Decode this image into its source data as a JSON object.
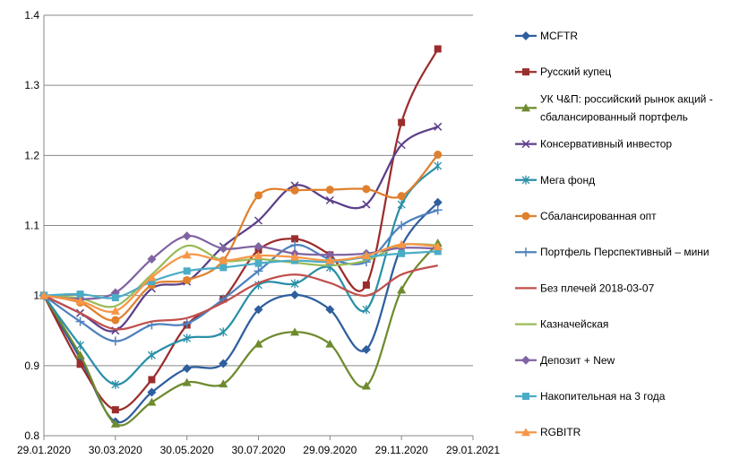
{
  "chart_data": {
    "type": "line",
    "title": "",
    "xlabel": "",
    "ylabel": "",
    "x": [
      "2020-01-29",
      "2020-02-29",
      "2020-03-30",
      "2020-04-30",
      "2020-05-30",
      "2020-06-30",
      "2020-07-30",
      "2020-08-30",
      "2020-09-29",
      "2020-10-30",
      "2020-11-29",
      "2020-12-30"
    ],
    "xticks": [
      "29.01.2020",
      "30.03.2020",
      "30.05.2020",
      "30.07.2020",
      "29.09.2020",
      "29.11.2020",
      "29.01.2021"
    ],
    "xlim": [
      "2020-01-29",
      "2021-01-29"
    ],
    "ylim": [
      0.8,
      1.4
    ],
    "yticks": [
      "0.8",
      "0.9",
      "1",
      "1.1",
      "1.2",
      "1.3",
      "1.4"
    ],
    "grid": "horizontal",
    "legend": "right",
    "series": [
      {
        "name": "MCFTR",
        "color": "#2E5E9E",
        "marker": "diamond",
        "values": [
          1.0,
          0.91,
          0.82,
          0.862,
          0.896,
          0.903,
          0.98,
          1.001,
          0.98,
          0.923,
          1.07,
          1.133
        ]
      },
      {
        "name": "Русский купец",
        "color": "#9B2D2D",
        "marker": "square",
        "values": [
          1.0,
          0.902,
          0.837,
          0.88,
          0.958,
          0.995,
          1.065,
          1.081,
          1.058,
          1.015,
          1.247,
          1.352
        ]
      },
      {
        "name": "УК Ч&П: российский рынок акций - сбалансированный портфель",
        "label_lines": [
          "УК Ч&П:  российский рынок акций -",
          "сбалансированный портфель"
        ],
        "color": "#6E8B2E",
        "marker": "triangle",
        "values": [
          1.0,
          0.915,
          0.817,
          0.848,
          0.876,
          0.874,
          0.931,
          0.948,
          0.931,
          0.871,
          1.008,
          1.075
        ]
      },
      {
        "name": "Консервативный инвестор",
        "color": "#5B3F8A",
        "marker": "x",
        "values": [
          1.0,
          0.975,
          0.95,
          1.01,
          1.02,
          1.07,
          1.107,
          1.157,
          1.136,
          1.13,
          1.215,
          1.241
        ]
      },
      {
        "name": "Мега фонд",
        "color": "#2A8FA8",
        "marker": "asterisk",
        "values": [
          1.0,
          0.929,
          0.873,
          0.915,
          0.939,
          0.948,
          1.015,
          1.017,
          1.04,
          0.98,
          1.13,
          1.185
        ]
      },
      {
        "name": "Сбалансированная опт",
        "color": "#E0802E",
        "marker": "circle",
        "values": [
          1.0,
          0.99,
          0.965,
          1.015,
          1.022,
          1.05,
          1.143,
          1.15,
          1.151,
          1.152,
          1.142,
          1.201
        ]
      },
      {
        "name": "Портфель  Перспективный  – мини",
        "color": "#4F82BD",
        "marker": "plus",
        "values": [
          1.0,
          0.963,
          0.935,
          0.958,
          0.96,
          0.995,
          1.035,
          1.072,
          1.052,
          1.048,
          1.1,
          1.122
        ]
      },
      {
        "name": "Без плечей  2018-03-07",
        "color": "#C0504D",
        "marker": "none",
        "values": [
          1.0,
          0.975,
          0.952,
          0.963,
          0.968,
          0.99,
          1.018,
          1.03,
          1.018,
          1.0,
          1.03,
          1.043
        ]
      },
      {
        "name": "Казначейская",
        "color": "#9BBB59",
        "marker": "none",
        "values": [
          1.0,
          0.996,
          0.985,
          1.03,
          1.071,
          1.05,
          1.052,
          1.047,
          1.043,
          1.05,
          1.072,
          1.072
        ]
      },
      {
        "name": "Депозит + New",
        "color": "#8064A2",
        "marker": "diamond",
        "values": [
          1.0,
          0.995,
          1.004,
          1.052,
          1.085,
          1.067,
          1.07,
          1.06,
          1.058,
          1.06,
          1.068,
          1.067
        ]
      },
      {
        "name": "Накопительная на 3 года",
        "color": "#4BACC6",
        "marker": "square",
        "values": [
          1.0,
          1.002,
          0.997,
          1.02,
          1.035,
          1.04,
          1.046,
          1.05,
          1.048,
          1.055,
          1.06,
          1.063
        ]
      },
      {
        "name": "RGBITR",
        "color": "#F79646",
        "marker": "triangle",
        "values": [
          1.0,
          0.992,
          0.978,
          1.026,
          1.058,
          1.05,
          1.057,
          1.055,
          1.05,
          1.057,
          1.073,
          1.07
        ]
      }
    ]
  }
}
